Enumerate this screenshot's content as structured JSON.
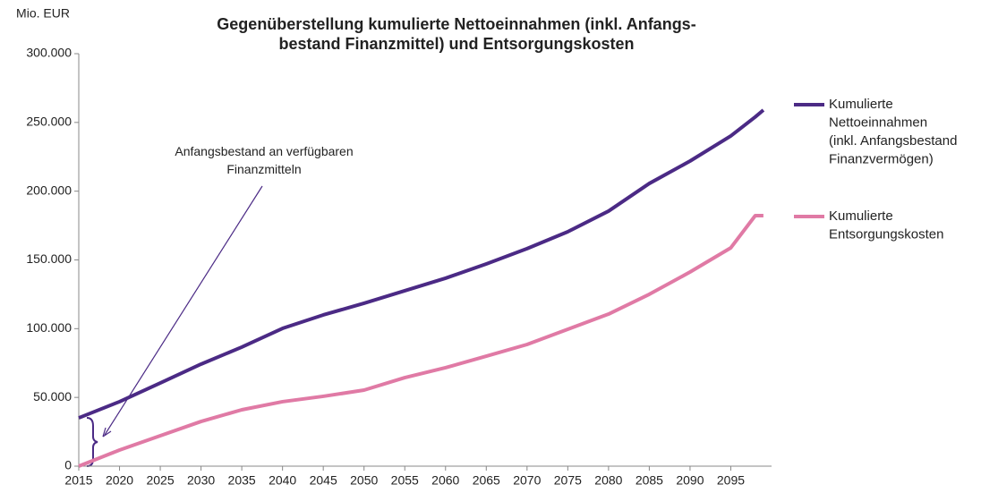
{
  "chart_data": {
    "type": "line",
    "title": "Gegenüberstellung kumulierte Nettoeinnahmen (inkl. Anfangs-\nbestand Finanzmittel) und Entsorgungskosten",
    "y_label": "Mio. EUR",
    "annotation": "Anfangsbestand an verfügbaren\nFinanzmitteln",
    "x": [
      2015,
      2020,
      2025,
      2030,
      2035,
      2040,
      2045,
      2050,
      2055,
      2060,
      2065,
      2070,
      2075,
      2080,
      2085,
      2090,
      2095,
      2098,
      2099
    ],
    "series": [
      {
        "name": "Kumulierte\nNettoeinnahmen\n(inkl. Anfangsbestand\nFinanzvermögen)",
        "color": "#4b2a85",
        "values": [
          35100,
          46900,
          60500,
          74200,
          86600,
          100200,
          110000,
          118500,
          127600,
          136700,
          147100,
          158200,
          170500,
          185500,
          205600,
          221900,
          240200,
          254000,
          259000
        ]
      },
      {
        "name": "Kumulierte\nEntsorgungskosten",
        "color": "#e07aa5",
        "values": [
          0,
          11700,
          22100,
          32500,
          41000,
          46900,
          50800,
          55300,
          64400,
          71600,
          80000,
          88500,
          99600,
          110600,
          125000,
          141200,
          158800,
          182200,
          182200
        ]
      }
    ],
    "xlim": [
      2015,
      2100
    ],
    "xticks": [
      2015,
      2020,
      2025,
      2030,
      2035,
      2040,
      2045,
      2050,
      2055,
      2060,
      2065,
      2070,
      2075,
      2080,
      2085,
      2090,
      2095
    ],
    "ylim": [
      0,
      300000
    ],
    "yticks": [
      0,
      {
        "value": 50000,
        "label": "50.000"
      },
      {
        "value": 100000,
        "label": "100.000"
      },
      {
        "value": 150000,
        "label": "150.000"
      },
      {
        "value": 200000,
        "label": "200.000"
      },
      {
        "value": 250000,
        "label": "250.000"
      },
      {
        "value": 300000,
        "label": "300.000"
      }
    ],
    "grid": false,
    "legend": "right"
  }
}
